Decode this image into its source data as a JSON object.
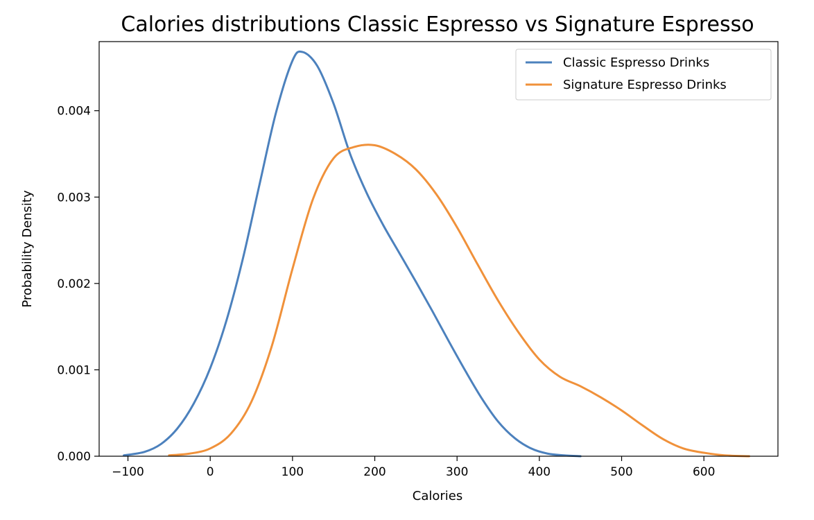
{
  "chart_data": {
    "type": "line",
    "title": "Calories distributions Classic Espresso vs Signature Espresso",
    "xlabel": "Calories",
    "ylabel": "Probability Density",
    "xlim": [
      -135,
      690
    ],
    "ylim": [
      0,
      0.0048
    ],
    "xticks": [
      -100,
      0,
      100,
      200,
      300,
      400,
      500,
      600
    ],
    "xtick_labels": [
      "−100",
      "0",
      "100",
      "200",
      "300",
      "400",
      "500",
      "600"
    ],
    "yticks": [
      0,
      0.001,
      0.002,
      0.003,
      0.004
    ],
    "ytick_labels": [
      "0.000",
      "0.001",
      "0.002",
      "0.003",
      "0.004"
    ],
    "grid": false,
    "legend_position": "top-right",
    "series": [
      {
        "name": "Classic Espresso Drinks",
        "color": "#4c81bd",
        "x": [
          -105,
          -80,
          -60,
          -40,
          -20,
          0,
          20,
          40,
          60,
          80,
          100,
          112,
          130,
          150,
          170,
          190,
          210,
          230,
          250,
          270,
          290,
          310,
          330,
          350,
          370,
          390,
          410,
          430,
          450
        ],
        "y": [
          1e-05,
          5e-05,
          0.00014,
          0.00032,
          0.00061,
          0.00102,
          0.00158,
          0.0023,
          0.00315,
          0.00398,
          0.00458,
          0.00468,
          0.00452,
          0.00408,
          0.0035,
          0.00305,
          0.00268,
          0.00235,
          0.00202,
          0.00168,
          0.00133,
          0.00099,
          0.00067,
          0.0004,
          0.00021,
          9e-05,
          3e-05,
          1e-05,
          0.0
        ]
      },
      {
        "name": "Signature Espresso Drinks",
        "color": "#f0913a",
        "x": [
          -50,
          -25,
          0,
          25,
          50,
          75,
          100,
          125,
          150,
          175,
          200,
          225,
          250,
          275,
          300,
          325,
          350,
          375,
          400,
          425,
          450,
          475,
          500,
          525,
          550,
          575,
          600,
          625,
          655
        ],
        "y": [
          1e-05,
          3e-05,
          9e-05,
          0.00026,
          0.00063,
          0.00128,
          0.00217,
          0.00298,
          0.00345,
          0.00358,
          0.0036,
          0.0035,
          0.00332,
          0.00303,
          0.00265,
          0.00222,
          0.0018,
          0.00143,
          0.00112,
          0.00092,
          0.00081,
          0.00068,
          0.00053,
          0.00036,
          0.0002,
          9e-05,
          4e-05,
          1e-05,
          0.0
        ]
      }
    ]
  }
}
